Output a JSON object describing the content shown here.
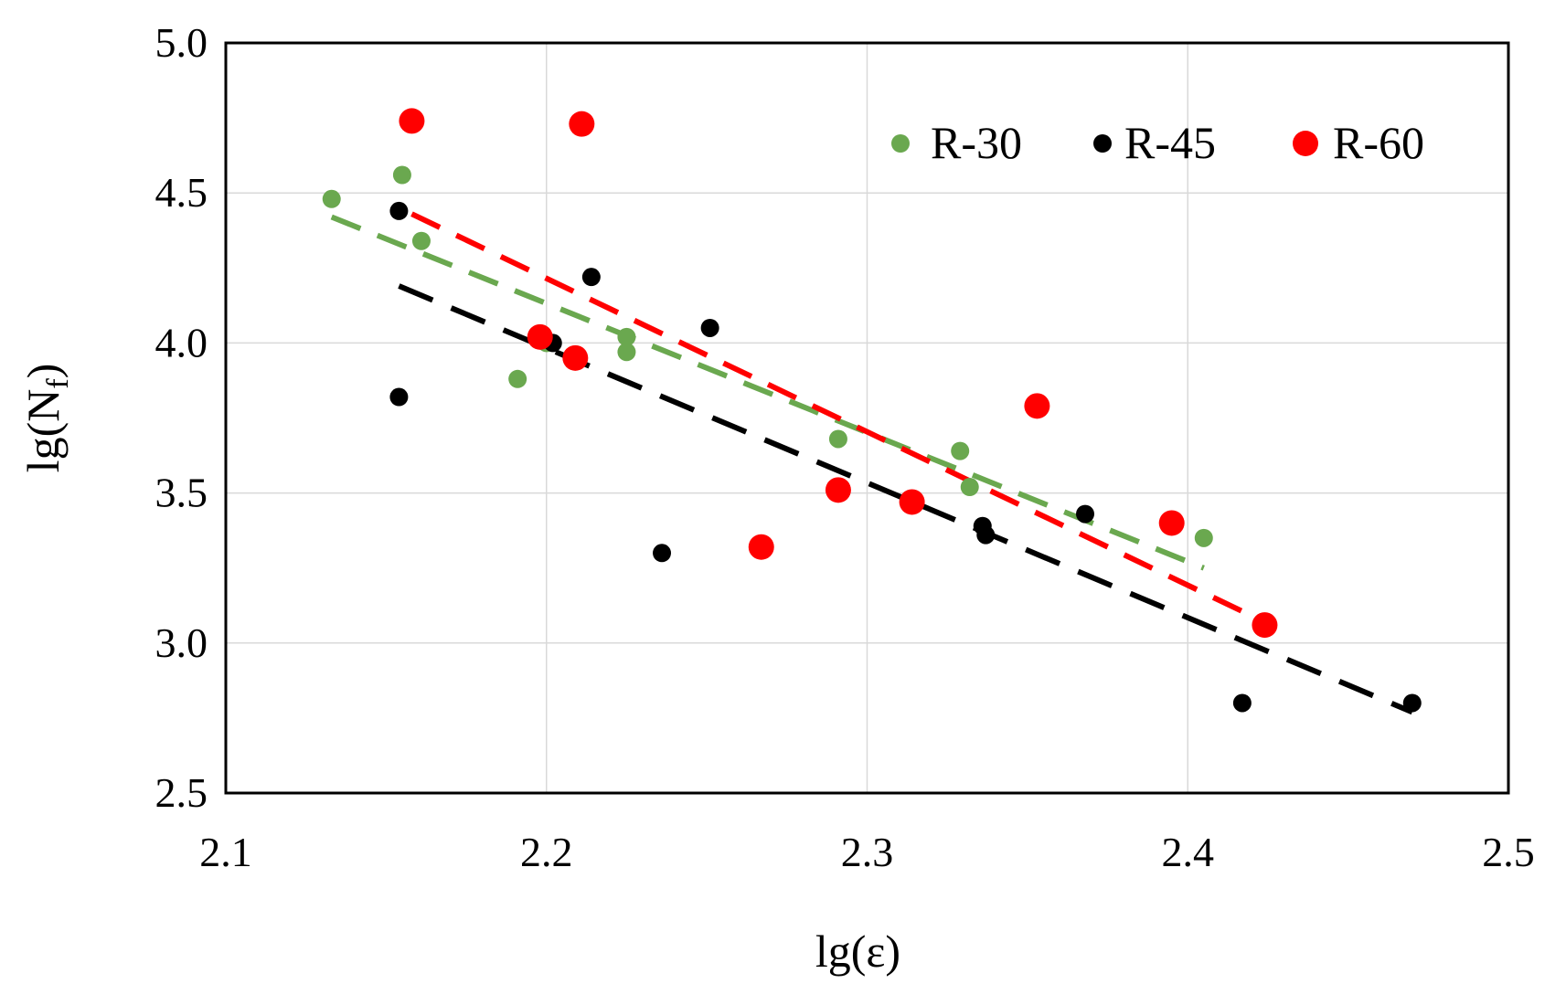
{
  "chart_data": {
    "type": "scatter",
    "title": "",
    "xlabel": "lg(ε)",
    "ylabel": "lg(N",
    "ylabel_sub": "f",
    "ylabel_close": ")",
    "xlim": [
      2.1,
      2.5
    ],
    "ylim": [
      2.5,
      5.0
    ],
    "xticks": [
      "2.1",
      "2.2",
      "2.3",
      "2.4",
      "2.5"
    ],
    "yticks": [
      "2.5",
      "3.0",
      "3.5",
      "4.0",
      "4.5",
      "5.0"
    ],
    "grid": true,
    "legend_position": "top-right",
    "series": [
      {
        "name": "R-30",
        "color": "#6aa84f",
        "marker_size": "small",
        "x": [
          2.133,
          2.155,
          2.161,
          2.191,
          2.2,
          2.225,
          2.225,
          2.291,
          2.329,
          2.332,
          2.405
        ],
        "y": [
          4.48,
          4.56,
          4.34,
          3.88,
          4.0,
          4.02,
          3.97,
          3.68,
          3.64,
          3.52,
          3.35
        ],
        "trend": {
          "x": [
            2.133,
            2.405
          ],
          "y": [
            4.42,
            3.25
          ]
        }
      },
      {
        "name": "R-45",
        "color": "#000000",
        "marker_size": "small",
        "x": [
          2.154,
          2.154,
          2.202,
          2.214,
          2.236,
          2.251,
          2.336,
          2.337,
          2.368,
          2.417,
          2.47
        ],
        "y": [
          4.44,
          3.82,
          4.0,
          4.22,
          3.3,
          4.05,
          3.39,
          3.36,
          3.43,
          2.8,
          2.8
        ],
        "trend": {
          "x": [
            2.154,
            2.47
          ],
          "y": [
            4.19,
            2.77
          ]
        }
      },
      {
        "name": "R-60",
        "color": "#ff0000",
        "marker_size": "large",
        "x": [
          2.158,
          2.211,
          2.198,
          2.209,
          2.267,
          2.291,
          2.314,
          2.353,
          2.395,
          2.424
        ],
        "y": [
          4.74,
          4.73,
          4.02,
          3.95,
          3.32,
          3.51,
          3.47,
          3.79,
          3.4,
          3.06
        ],
        "trend": {
          "x": [
            2.158,
            2.424
          ],
          "y": [
            4.43,
            3.07
          ]
        }
      }
    ]
  }
}
